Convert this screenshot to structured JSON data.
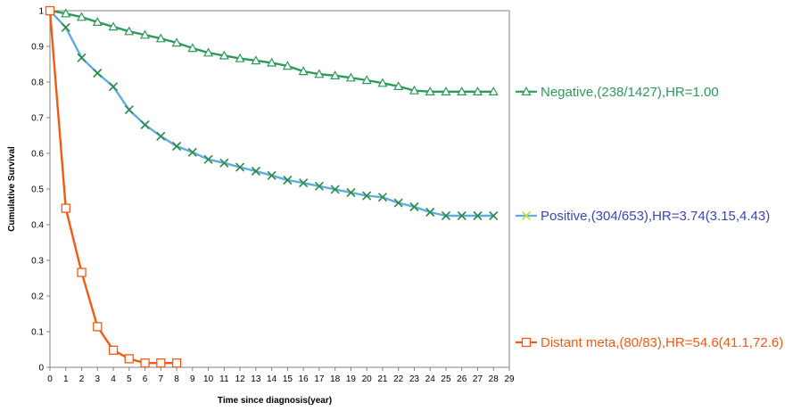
{
  "chart_data": {
    "type": "line",
    "title": "",
    "xlabel": "Time since diagnosis(year)",
    "ylabel": "Cumulative Survival",
    "xlim": [
      0,
      29
    ],
    "ylim": [
      0,
      1
    ],
    "x_ticks": [
      "0",
      "1",
      "2",
      "3",
      "4",
      "5",
      "6",
      "7",
      "8",
      "9",
      "10",
      "11",
      "12",
      "13",
      "14",
      "15",
      "16",
      "17",
      "18",
      "19",
      "20",
      "21",
      "22",
      "23",
      "24",
      "25",
      "26",
      "27",
      "28",
      "29"
    ],
    "y_ticks": [
      "0",
      "0.1",
      "0.2",
      "0.3",
      "0.4",
      "0.5",
      "0.6",
      "0.7",
      "0.8",
      "0.9",
      "1"
    ],
    "grid": false,
    "legend_position": "right",
    "series": [
      {
        "name": "Negative,(238/1427),HR=1.00",
        "color": "#2e9a5a",
        "marker": "triangle",
        "x": [
          0,
          1,
          2,
          3,
          4,
          5,
          6,
          7,
          8,
          9,
          10,
          11,
          12,
          13,
          14,
          15,
          16,
          17,
          18,
          19,
          20,
          21,
          22,
          23,
          24,
          25,
          26,
          27,
          28
        ],
        "y": [
          1.0,
          0.992,
          0.982,
          0.968,
          0.955,
          0.942,
          0.932,
          0.922,
          0.91,
          0.895,
          0.882,
          0.874,
          0.866,
          0.86,
          0.854,
          0.845,
          0.83,
          0.822,
          0.818,
          0.812,
          0.805,
          0.797,
          0.788,
          0.776,
          0.773,
          0.773,
          0.773,
          0.773,
          0.773
        ]
      },
      {
        "name": "Positive,(304/653),HR=3.74(3.15,4.43)",
        "color": "#5aaee0",
        "marker": "x",
        "marker_color": "#2e8a45",
        "x": [
          0,
          1,
          2,
          3,
          4,
          5,
          6,
          7,
          8,
          9,
          10,
          11,
          12,
          13,
          14,
          15,
          16,
          17,
          18,
          19,
          20,
          21,
          22,
          23,
          24,
          25,
          26,
          27,
          28
        ],
        "y": [
          1.0,
          0.953,
          0.868,
          0.825,
          0.787,
          0.722,
          0.68,
          0.648,
          0.62,
          0.603,
          0.583,
          0.573,
          0.561,
          0.55,
          0.538,
          0.525,
          0.517,
          0.508,
          0.499,
          0.49,
          0.481,
          0.477,
          0.461,
          0.45,
          0.435,
          0.425,
          0.425,
          0.425,
          0.425
        ]
      },
      {
        "name": "Distant meta,(80/83),HR=54.6(41.1,72.6)",
        "color": "#f25a14",
        "marker": "square",
        "x": [
          0,
          1,
          2,
          3,
          4,
          5,
          6,
          7,
          8
        ],
        "y": [
          1.0,
          0.446,
          0.266,
          0.114,
          0.048,
          0.024,
          0.012,
          0.012,
          0.012
        ]
      }
    ],
    "legend_label_colors": [
      "#2e9a5a",
      "#3a46b4",
      "#f25a14"
    ]
  }
}
